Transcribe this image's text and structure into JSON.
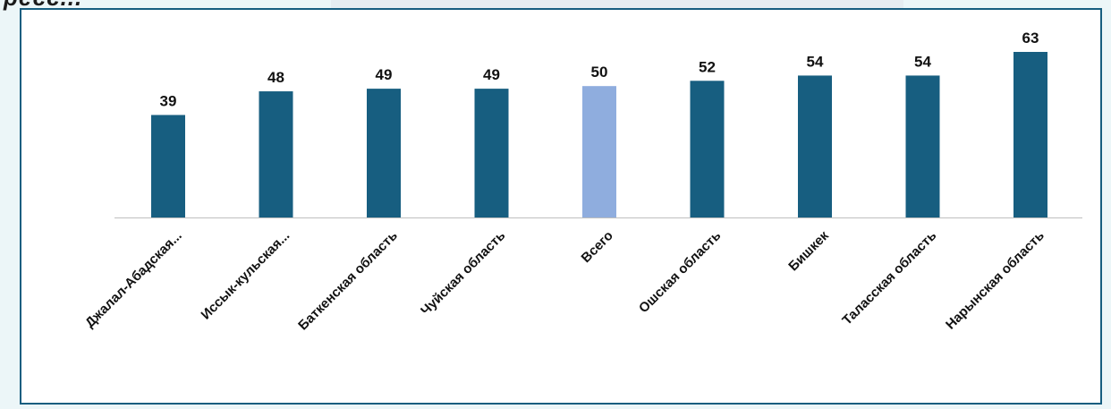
{
  "page": {
    "heading_fragment": "ресс..."
  },
  "colors": {
    "bar": "#175e80",
    "highlight": "#8fadde",
    "frame": "#175e80",
    "axis": "#bfbfbf"
  },
  "chart_data": {
    "type": "bar",
    "categories": [
      "Джалал-Абадская...",
      "Иссык-кульская...",
      "Баткенская область",
      "Чуйская область",
      "Всего",
      "Ошская область",
      "Бишкек",
      "Таласская область",
      "Нарынская область"
    ],
    "values": [
      39,
      48,
      49,
      49,
      50,
      52,
      54,
      54,
      63
    ],
    "highlight_category": "Всего",
    "ylim": [
      0,
      63
    ],
    "grid": false,
    "legend": "none",
    "data_labels": true
  }
}
